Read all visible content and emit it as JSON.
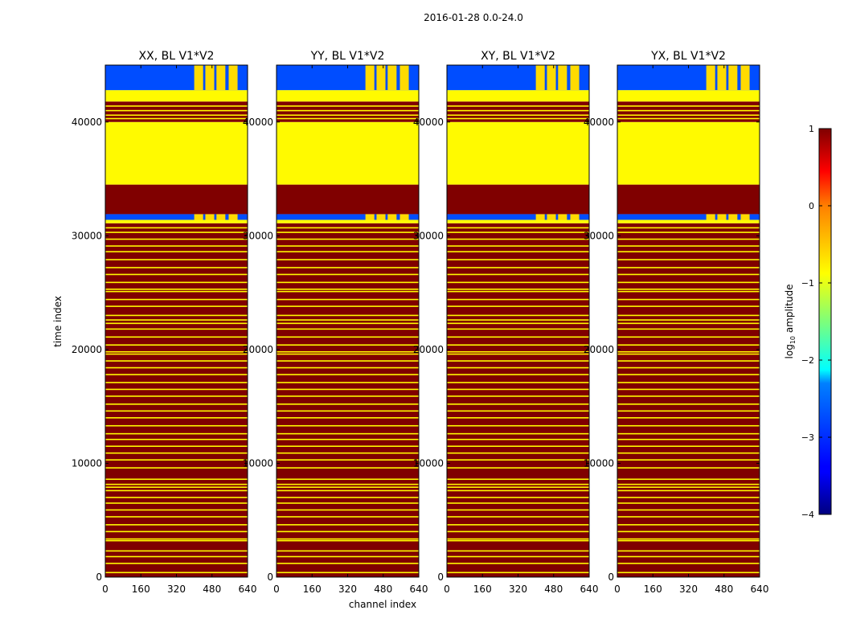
{
  "suptitle": "2016-01-28 0.0-24.0",
  "chart_data": {
    "type": "heatmap",
    "x_range": [
      0,
      640
    ],
    "y_range": [
      0,
      45000
    ],
    "xticks": [
      0,
      160,
      320,
      480,
      640
    ],
    "yticks": [
      0,
      10000,
      20000,
      30000,
      40000
    ],
    "xlabel": "channel index",
    "ylabel": "time index",
    "colorbar": {
      "label": "log₁₀ amplitude",
      "label_prefix": "log",
      "label_subscript": "10",
      "label_suffix": " amplitude",
      "range": [
        -4,
        1
      ],
      "ticks": [
        -4,
        -3,
        -2,
        -1,
        0,
        1
      ],
      "tick_labels": [
        "−4",
        "−3",
        "−2",
        "−1",
        "0",
        "1"
      ],
      "colormap": "jet"
    },
    "panels": [
      {
        "title": "XX, BL V1*V2",
        "product": "XX"
      },
      {
        "title": "YY, BL V1*V2",
        "product": "YY"
      },
      {
        "title": "XY, BL V1*V2",
        "product": "XY"
      },
      {
        "title": "YX, BL V1*V2",
        "product": "YX"
      }
    ],
    "blocks": [
      {
        "from": 0,
        "to": 31100,
        "log10_amp": 1,
        "note": "flagged (saturated) with thin stripes at -0.85"
      },
      {
        "from": 31100,
        "to": 31400,
        "log10_amp": -0.85
      },
      {
        "from": 31400,
        "to": 31900,
        "log10_amp": -3.0,
        "note": "data, high channels ~ -0.9 in 4 bands"
      },
      {
        "from": 31900,
        "to": 34500,
        "log10_amp": 1
      },
      {
        "from": 34500,
        "to": 40000,
        "log10_amp": -0.85
      },
      {
        "from": 40000,
        "to": 41800,
        "log10_amp": 1,
        "note": "with thin stripes at -0.85"
      },
      {
        "from": 41800,
        "to": 42800,
        "log10_amp": -0.85
      },
      {
        "from": 42800,
        "to": 45000,
        "log10_amp": -3.0,
        "note": "data, high channels ~ -0.8 in 4 bands"
      }
    ],
    "stripes_y": [
      400,
      1200,
      1800,
      2300,
      3200,
      3350,
      4000,
      4600,
      5300,
      5900,
      6500,
      7000,
      7600,
      7900,
      8150,
      8600,
      9600,
      10300,
      10900,
      11500,
      12100,
      12600,
      13300,
      14000,
      14600,
      15200,
      15900,
      16500,
      17100,
      17800,
      18400,
      19000,
      19600,
      19800,
      20400,
      21100,
      21800,
      22300,
      22600,
      23000,
      23800,
      24400,
      25100,
      25300,
      25900,
      26600,
      27200,
      27900,
      28600,
      29100,
      29700,
      30300,
      30700,
      40300,
      40600,
      41000,
      41400
    ],
    "bright_bands_x": [
      [
        400,
        440
      ],
      [
        450,
        490
      ],
      [
        500,
        540
      ],
      [
        555,
        595
      ]
    ]
  }
}
